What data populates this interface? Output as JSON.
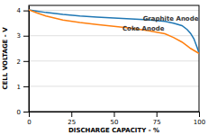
{
  "chart_data": {
    "type": "line",
    "xlabel": "DISCHARGE CAPACITY - %",
    "ylabel": "CELL VOLTAGE - V",
    "x": [
      0,
      5,
      10,
      20,
      30,
      40,
      50,
      60,
      70,
      80,
      85,
      90,
      93,
      95,
      97,
      99,
      100
    ],
    "series": [
      {
        "values": [
          4.02,
          3.97,
          3.92,
          3.84,
          3.78,
          3.74,
          3.7,
          3.67,
          3.63,
          3.57,
          3.5,
          3.4,
          3.25,
          3.1,
          2.88,
          2.52,
          2.32
        ]
      },
      {
        "values": [
          4.02,
          3.9,
          3.78,
          3.62,
          3.52,
          3.44,
          3.37,
          3.3,
          3.2,
          3.08,
          2.93,
          2.75,
          2.6,
          2.5,
          2.42,
          2.34,
          2.3
        ]
      }
    ],
    "annotations": [
      {
        "text": "Graphite Anode",
        "x": 67,
        "y": 3.58
      },
      {
        "text": "Coke Anode",
        "x": 55,
        "y": 3.2
      }
    ],
    "xlim": [
      0,
      100
    ],
    "ylim": [
      0,
      4.2
    ],
    "xticks": [
      0,
      25,
      50,
      75,
      100
    ],
    "yticks": [
      0,
      1,
      2,
      3,
      4
    ],
    "grid": true
  }
}
